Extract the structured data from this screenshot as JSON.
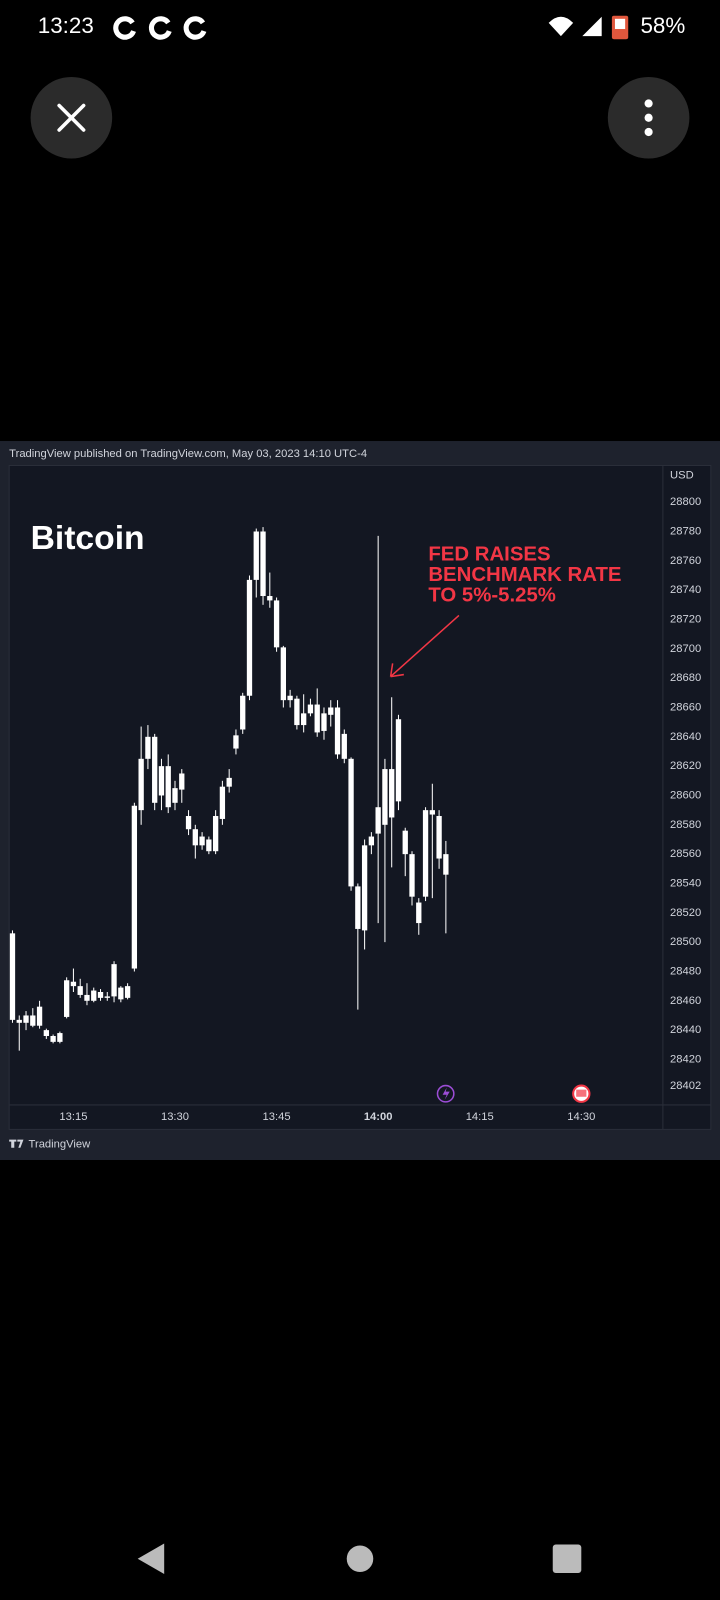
{
  "status_bar": {
    "time": "13:23",
    "battery": "58%"
  },
  "chart_data": {
    "type": "candlestick",
    "header": "TradingView published on TradingView.com, May 03, 2023 14:10 UTC-4",
    "title": "Bitcoin",
    "annotation": [
      "FED RAISES",
      "BENCHMARK RATE",
      "TO 5%-5.25%"
    ],
    "currency": "USD",
    "footer": "TradingView",
    "color": "#ffffff",
    "grid": false,
    "x": [
      "13:06",
      "13:07",
      "13:08",
      "13:09",
      "13:10",
      "13:11",
      "13:12",
      "13:13",
      "13:14",
      "13:15",
      "13:16",
      "13:17",
      "13:18",
      "13:19",
      "13:20",
      "13:21",
      "13:22",
      "13:23",
      "13:24",
      "13:25",
      "13:26",
      "13:27",
      "13:28",
      "13:29",
      "13:30",
      "13:31",
      "13:32",
      "13:33",
      "13:34",
      "13:35",
      "13:36",
      "13:37",
      "13:38",
      "13:39",
      "13:40",
      "13:41",
      "13:42",
      "13:43",
      "13:44",
      "13:45",
      "13:46",
      "13:47",
      "13:48",
      "13:49",
      "13:50",
      "13:51",
      "13:52",
      "13:53",
      "13:54",
      "13:55",
      "13:56",
      "13:57",
      "13:58",
      "13:59",
      "14:00",
      "14:01",
      "14:02",
      "14:03",
      "14:04",
      "14:05",
      "14:06",
      "14:07",
      "14:08",
      "14:09",
      "14:10"
    ],
    "open": [
      28506,
      28447,
      28445,
      28450,
      28443,
      28440,
      28436,
      28432,
      28449,
      28473,
      28470,
      28464,
      28460,
      28466,
      28462,
      28463,
      28469,
      28462,
      28482,
      28590,
      28625,
      28640,
      28600,
      28620,
      28595,
      28604,
      28586,
      28577,
      28566,
      28570,
      28562,
      28584,
      28606,
      28632,
      28645,
      28668,
      28747,
      28780,
      28736,
      28733,
      28701,
      28665,
      28666,
      28648,
      28656,
      28662,
      28644,
      28655,
      28660,
      28642,
      28625,
      28538,
      28508,
      28566,
      28574,
      28580,
      28618,
      28596,
      28576,
      28560,
      28527,
      28531,
      28590,
      28586,
      28560
    ],
    "high": [
      28508,
      28450,
      28453,
      28455,
      28460,
      28441,
      28437,
      28439,
      28476,
      28482,
      28475,
      28472,
      28469,
      28468,
      28466,
      28487,
      28470,
      28472,
      28595,
      28647,
      28648,
      28642,
      28625,
      28628,
      28610,
      28618,
      28590,
      28580,
      28575,
      28572,
      28590,
      28610,
      28618,
      28645,
      28670,
      28750,
      28782,
      28783,
      28752,
      28735,
      28702,
      28672,
      28668,
      28669,
      28666,
      28673,
      28660,
      28665,
      28665,
      28645,
      28626,
      28540,
      28570,
      28575,
      28777,
      28625,
      28667,
      28655,
      28578,
      28562,
      28530,
      28592,
      28608,
      28590,
      28569
    ],
    "low": [
      28445,
      28426,
      28440,
      28442,
      28441,
      28434,
      28431,
      28431,
      28448,
      28466,
      28462,
      28457,
      28459,
      28460,
      28460,
      28459,
      28459,
      28461,
      28480,
      28580,
      28618,
      28590,
      28590,
      28588,
      28590,
      28595,
      28573,
      28557,
      28563,
      28560,
      28560,
      28580,
      28602,
      28628,
      28642,
      28665,
      28735,
      28730,
      28728,
      28698,
      28660,
      28660,
      28645,
      28643,
      28654,
      28640,
      28638,
      28647,
      28625,
      28622,
      28535,
      28454,
      28495,
      28560,
      28513,
      28500,
      28551,
      28590,
      28545,
      28525,
      28505,
      28528,
      28530,
      28550,
      28506
    ],
    "close": [
      28447,
      28445,
      28450,
      28443,
      28456,
      28436,
      28432,
      28438,
      28474,
      28470,
      28464,
      28460,
      28467,
      28462,
      28463,
      28485,
      28461,
      28470,
      28593,
      28625,
      28640,
      28595,
      28620,
      28592,
      28605,
      28615,
      28577,
      28566,
      28572,
      28562,
      28586,
      28606,
      28612,
      28641,
      28668,
      28747,
      28780,
      28736,
      28733,
      28701,
      28665,
      28668,
      28648,
      28656,
      28662,
      28643,
      28656,
      28660,
      28628,
      28625,
      28538,
      28509,
      28566,
      28572,
      28592,
      28618,
      28585,
      28652,
      28560,
      28531,
      28513,
      28590,
      28587,
      28557,
      28546
    ],
    "ylim": [
      28389,
      28825
    ],
    "yticks": [
      28800,
      28780,
      28760,
      28740,
      28720,
      28700,
      28680,
      28660,
      28640,
      28620,
      28600,
      28580,
      28560,
      28540,
      28520,
      28500,
      28480,
      28460,
      28440,
      28420,
      28402
    ],
    "xticks": [
      "13:15",
      "13:30",
      "13:45",
      "14:00",
      "14:15",
      "14:30"
    ]
  }
}
